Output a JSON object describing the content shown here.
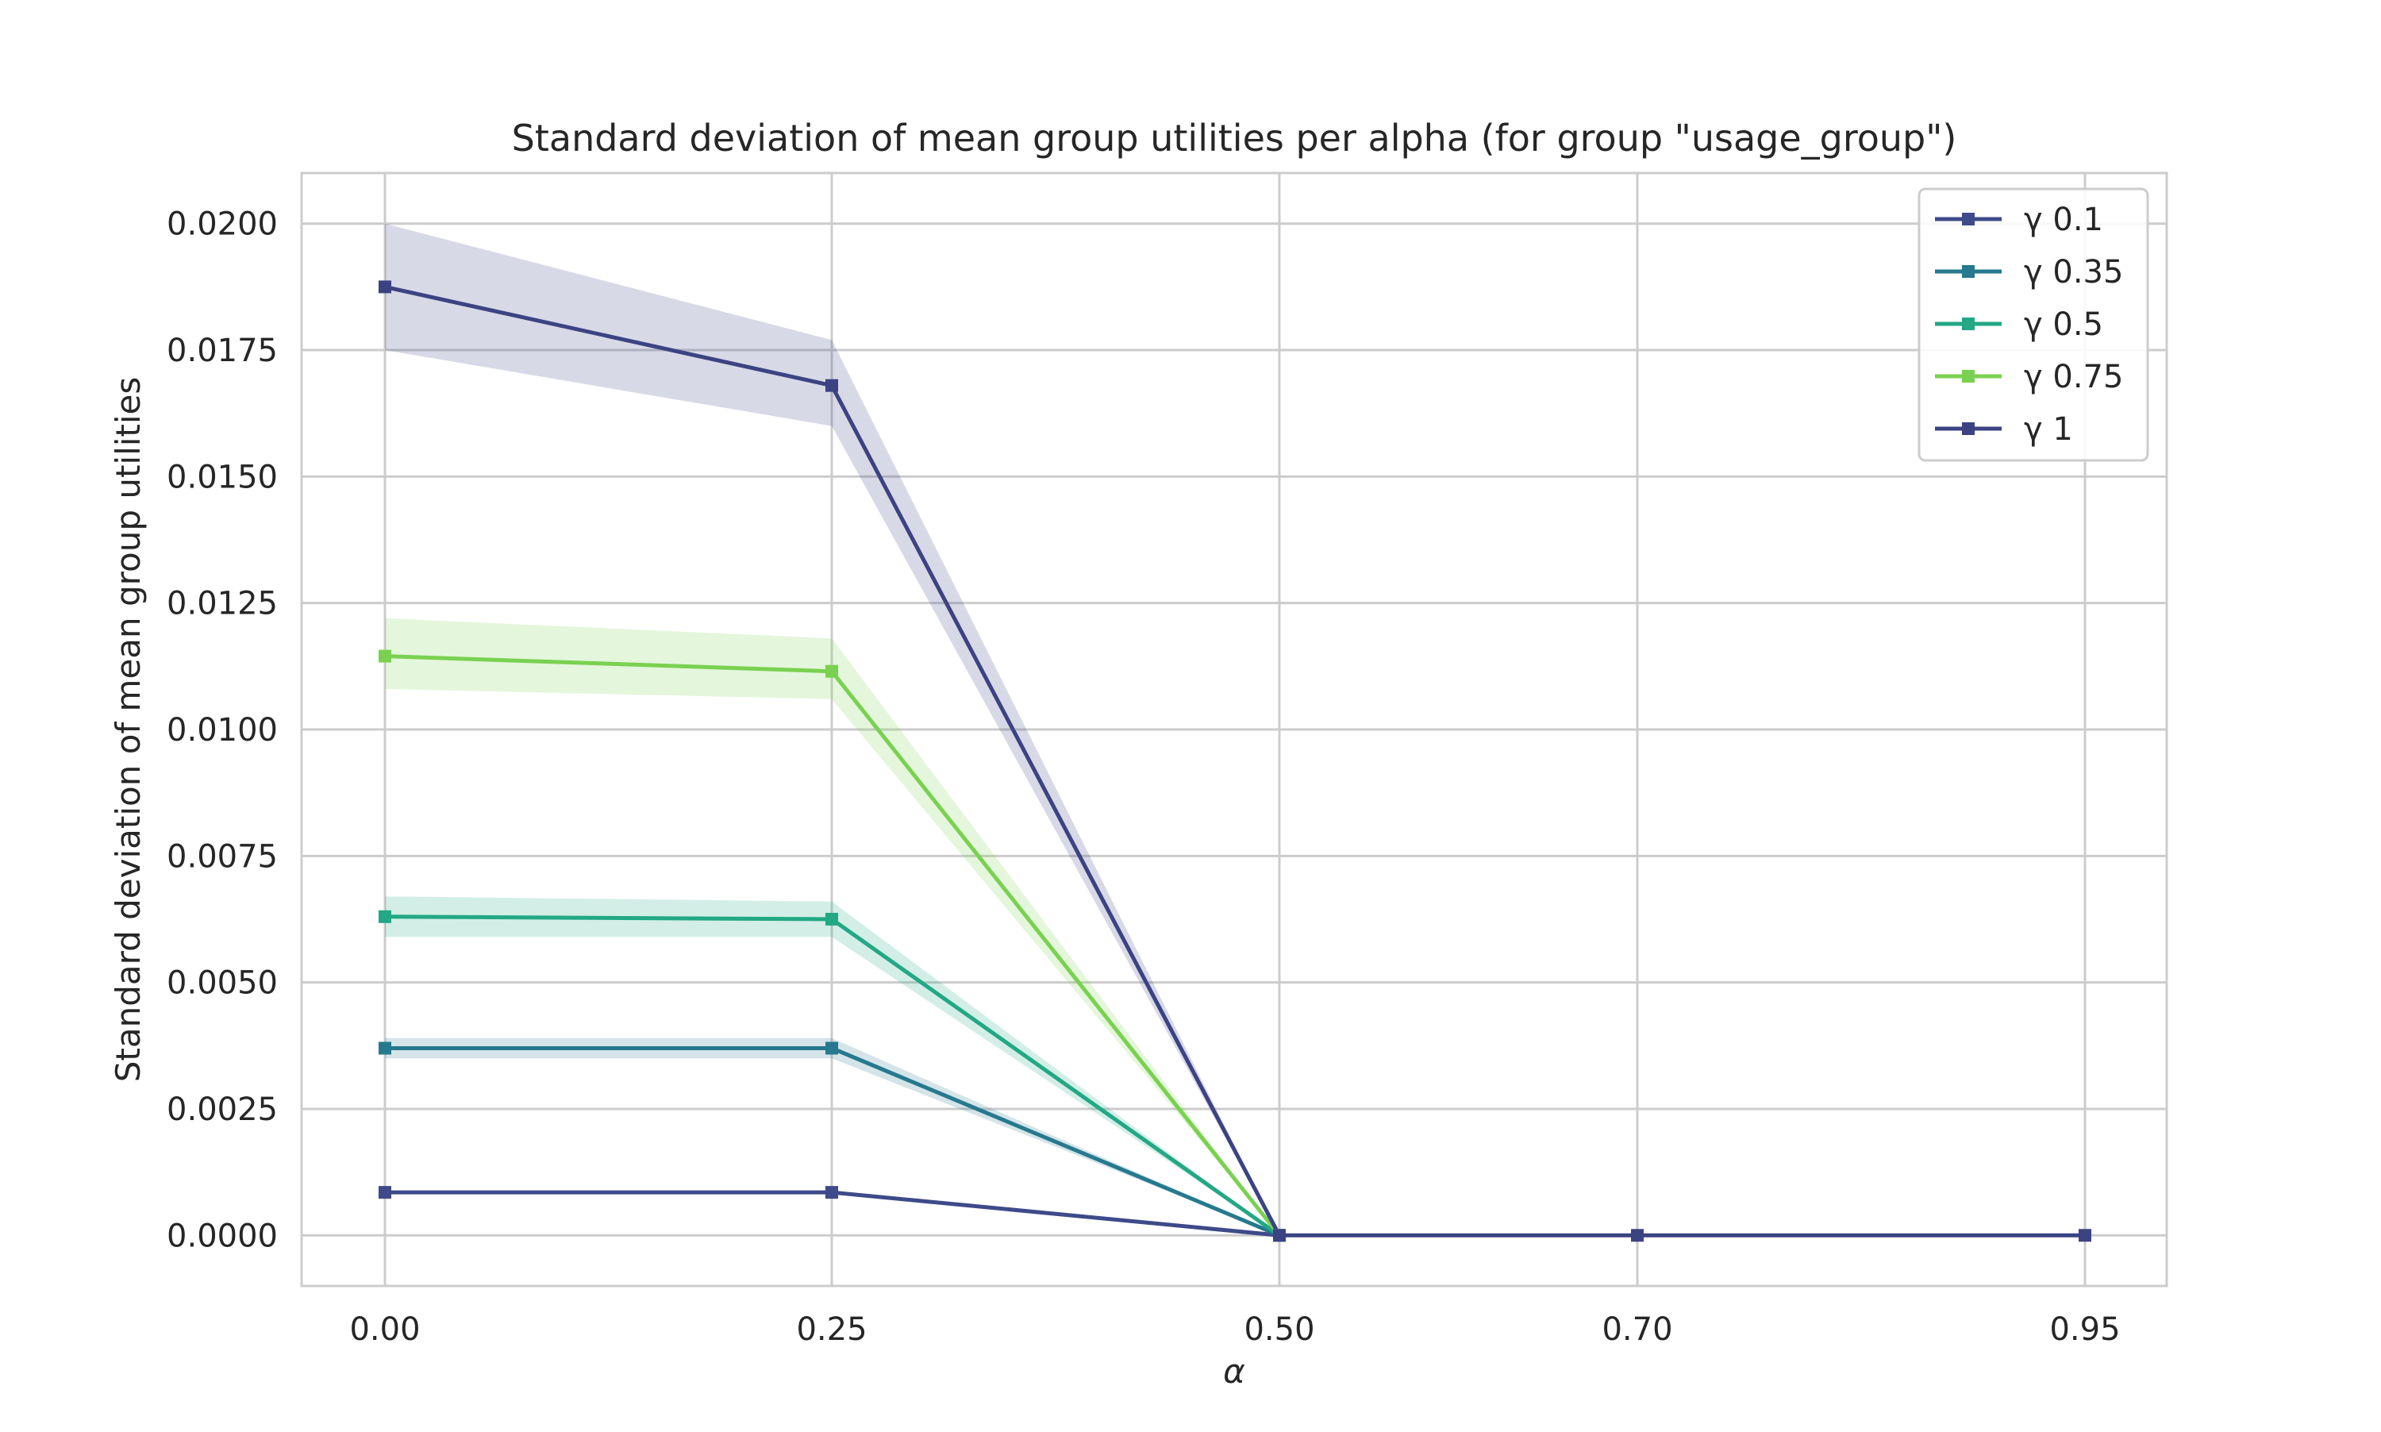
{
  "chart_data": {
    "type": "line",
    "title": "Standard deviation of mean group utilities per alpha (for group \"usage_group\")",
    "xlabel": "α",
    "ylabel": "Standard deviation of mean group utilities",
    "x": [
      "0.00",
      "0.25",
      "0.50",
      "0.70",
      "0.95"
    ],
    "x_tick_labels": [
      "0.00",
      "0.25",
      "0.50",
      "0.70",
      "0.95"
    ],
    "y_tick_values": [
      0.0,
      0.0025,
      0.005,
      0.0075,
      0.01,
      0.0125,
      0.015,
      0.0175,
      0.02
    ],
    "y_tick_labels": [
      "0.0000",
      "0.0025",
      "0.0050",
      "0.0075",
      "0.0100",
      "0.0125",
      "0.0150",
      "0.0175",
      "0.0200"
    ],
    "ylim": [
      -0.001,
      0.021
    ],
    "grid": true,
    "legend_position": "top-right",
    "series": [
      {
        "name": "γ 0.1",
        "color": "#3e4a89",
        "values": [
          0.00085,
          0.00085,
          0.0,
          null,
          null
        ],
        "band_lower": [
          0.00085,
          0.00085,
          0.0,
          null,
          null
        ],
        "band_upper": [
          0.00085,
          0.00085,
          0.0,
          null,
          null
        ]
      },
      {
        "name": "γ 0.35",
        "color": "#26798e",
        "values": [
          0.0037,
          0.0037,
          0.0,
          null,
          null
        ],
        "band_lower": [
          0.0035,
          0.0035,
          0.0,
          null,
          null
        ],
        "band_upper": [
          0.0039,
          0.0039,
          0.0,
          null,
          null
        ]
      },
      {
        "name": "γ 0.5",
        "color": "#22a884",
        "values": [
          0.0063,
          0.00625,
          0.0,
          null,
          null
        ],
        "band_lower": [
          0.0059,
          0.0059,
          0.0,
          null,
          null
        ],
        "band_upper": [
          0.0067,
          0.0066,
          0.0,
          null,
          null
        ]
      },
      {
        "name": "γ 0.75",
        "color": "#7ad151",
        "values": [
          0.01145,
          0.01115,
          0.0,
          null,
          null
        ],
        "band_lower": [
          0.0108,
          0.0106,
          0.0,
          null,
          null
        ],
        "band_upper": [
          0.0122,
          0.0118,
          0.0,
          null,
          null
        ]
      },
      {
        "name": "γ 1",
        "color": "#3b4383",
        "values": [
          0.01875,
          0.0168,
          0.0,
          0.0,
          0.0
        ],
        "band_lower": [
          0.0175,
          0.016,
          0.0,
          0.0,
          0.0
        ],
        "band_upper": [
          0.02,
          0.0177,
          0.0,
          0.0,
          0.0
        ]
      }
    ]
  }
}
